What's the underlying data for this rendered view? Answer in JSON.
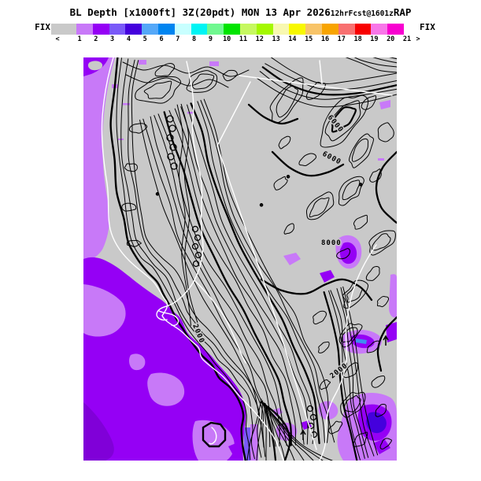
{
  "title": {
    "main": "BL Depth [x1000ft] 3Z(20pdt) MON 13 Apr 2026",
    "sub": "12hrFcst@1601z",
    "model": "RAP"
  },
  "colorbar": {
    "fix_left": "FIX",
    "fix_right": "FIX",
    "tick_labels": [
      "<",
      "1",
      "2",
      "3",
      "4",
      "5",
      "6",
      "7",
      "8",
      "9",
      "10",
      "11",
      "12",
      "13",
      "14",
      "15",
      "16",
      "17",
      "18",
      "19",
      "20",
      "21",
      ">"
    ],
    "cell_colors": [
      "#c9c9c9",
      "#c879f8",
      "#9500f5",
      "#7a5af8",
      "#4400dd",
      "#55a8f8",
      "#0085f0",
      "#c8ffff",
      "#00f4f4",
      "#70f890",
      "#00e400",
      "#c6f860",
      "#a4f800",
      "#f8f8b0",
      "#f8f800",
      "#f8c468",
      "#f8a400",
      "#f87070",
      "#f80000",
      "#f876e8",
      "#f800d0"
    ]
  },
  "map": {
    "palette": {
      "land": "#c9c9c9",
      "lp": "#c879f8",
      "vp": "#9500f5",
      "dp": "#8000d8",
      "bv": "#7a5af8",
      "ind": "#4400dd",
      "bl": "#3f8ef0",
      "contour": "#000000",
      "border": "#ffffff"
    },
    "contour_labels": [
      {
        "text": "6000"
      },
      {
        "text": "6000"
      },
      {
        "text": "8000"
      },
      {
        "text": "2000"
      },
      {
        "text": "2000"
      }
    ]
  }
}
